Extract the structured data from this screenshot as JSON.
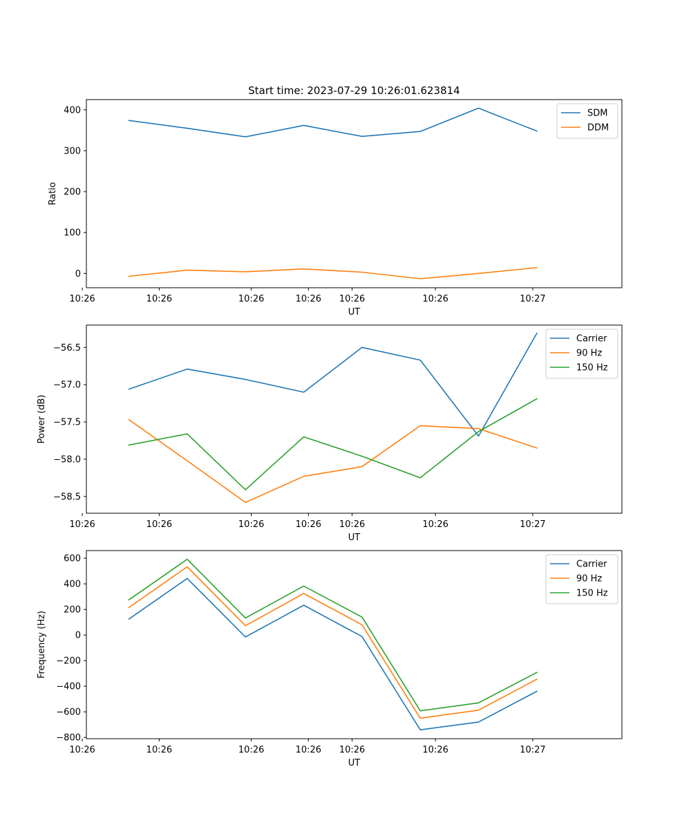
{
  "chart_data": [
    {
      "type": "line",
      "title": "Start time: 2023-07-29 10:26:01.623814",
      "xlabel": "UT",
      "ylabel": "Ratio",
      "x_tick_labels": [
        "10:26",
        "10:26",
        "10:26",
        "10:26",
        "10:26",
        "10:26",
        "10:27"
      ],
      "x": [
        1,
        2,
        3,
        4,
        5,
        6,
        7,
        8
      ],
      "xlim": [
        0.27,
        9.46
      ],
      "ylim": [
        -35,
        425
      ],
      "yticks": [
        0,
        100,
        200,
        300,
        400
      ],
      "legend_loc": "upper right",
      "series": [
        {
          "name": "SDM",
          "color": "#1f77b4",
          "values": [
            374,
            355,
            334,
            362,
            335,
            347,
            404,
            348
          ]
        },
        {
          "name": "DDM",
          "color": "#ff7f0e",
          "values": [
            -7,
            8,
            4,
            11,
            3,
            -13,
            0,
            14
          ]
        }
      ]
    },
    {
      "type": "line",
      "title": "",
      "xlabel": "UT",
      "ylabel": "Power (dB)",
      "x_tick_labels": [
        "10:26",
        "10:26",
        "10:26",
        "10:26",
        "10:26",
        "10:26",
        "10:27"
      ],
      "x": [
        1,
        2,
        3,
        4,
        5,
        6,
        7,
        8
      ],
      "xlim": [
        0.27,
        9.46
      ],
      "ylim": [
        -58.725,
        -56.2
      ],
      "yticks": [
        -58.5,
        -58.0,
        -57.5,
        -57.0,
        -56.5
      ],
      "ytick_labels": [
        "−58.5",
        "−58.0",
        "−57.5",
        "−57.0",
        "−56.5"
      ],
      "legend_loc": "upper right",
      "series": [
        {
          "name": "Carrier",
          "color": "#1f77b4",
          "values": [
            -57.06,
            -56.79,
            -56.93,
            -57.1,
            -56.5,
            -56.67,
            -57.69,
            -56.31
          ]
        },
        {
          "name": "90 Hz",
          "color": "#ff7f0e",
          "values": [
            -57.47,
            -58.02,
            -58.58,
            -58.23,
            -58.1,
            -57.55,
            -57.59,
            -57.85
          ]
        },
        {
          "name": "150 Hz",
          "color": "#2ca02c",
          "values": [
            -57.81,
            -57.66,
            -58.41,
            -57.7,
            -57.96,
            -58.25,
            -57.63,
            -57.19
          ]
        }
      ]
    },
    {
      "type": "line",
      "title": "",
      "xlabel": "UT",
      "ylabel": "Frequency (Hz)",
      "x_tick_labels": [
        "10:26",
        "10:26",
        "10:26",
        "10:26",
        "10:26",
        "10:26",
        "10:27"
      ],
      "x": [
        1,
        2,
        3,
        4,
        5,
        6,
        7,
        8
      ],
      "xlim": [
        0.27,
        9.46
      ],
      "ylim": [
        -810,
        660
      ],
      "yticks": [
        -800,
        -600,
        -400,
        -200,
        0,
        200,
        400,
        600
      ],
      "ytick_labels": [
        "−800",
        "−600",
        "−400",
        "−200",
        "0",
        "200",
        "400",
        "600"
      ],
      "legend_loc": "upper right",
      "series": [
        {
          "name": "Carrier",
          "color": "#1f77b4",
          "values": [
            125,
            442,
            -15,
            233,
            -12,
            -741,
            -680,
            -440
          ]
        },
        {
          "name": "90 Hz",
          "color": "#ff7f0e",
          "values": [
            215,
            533,
            73,
            325,
            80,
            -650,
            -587,
            -345
          ]
        },
        {
          "name": "150 Hz",
          "color": "#2ca02c",
          "values": [
            275,
            592,
            133,
            383,
            140,
            -592,
            -530,
            -292
          ]
        }
      ]
    }
  ]
}
